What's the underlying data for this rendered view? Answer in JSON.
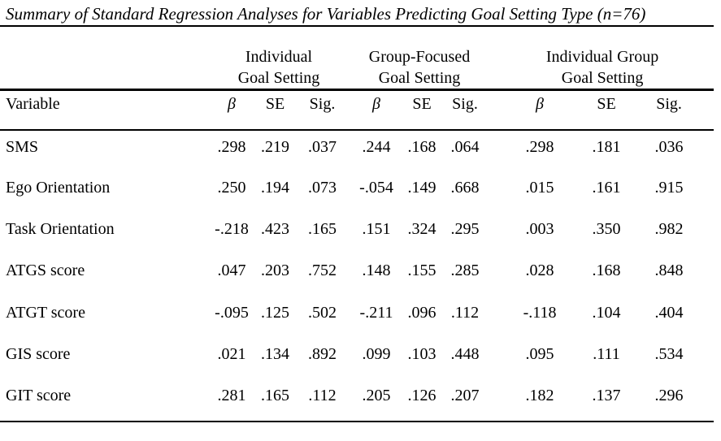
{
  "title": "Summary of Standard Regression Analyses for Variables Predicting Goal Setting Type (n=76)",
  "table": {
    "variable_header": "Variable",
    "groups": [
      {
        "line1": "Individual",
        "line2": "Goal Setting"
      },
      {
        "line1": "Group-Focused",
        "line2": "Goal Setting"
      },
      {
        "line1": "Individual Group",
        "line2": "Goal Setting"
      }
    ],
    "stat_headers": [
      "β",
      "SE",
      "Sig."
    ],
    "rows": [
      {
        "variable": "SMS",
        "values": [
          ".298",
          ".219",
          ".037",
          ".244",
          ".168",
          ".064",
          ".298",
          ".181",
          ".036"
        ]
      },
      {
        "variable": "Ego Orientation",
        "values": [
          ".250",
          ".194",
          ".073",
          "-.054",
          ".149",
          ".668",
          ".015",
          ".161",
          ".915"
        ]
      },
      {
        "variable": "Task Orientation",
        "values": [
          "-.218",
          ".423",
          ".165",
          ".151",
          ".324",
          ".295",
          ".003",
          ".350",
          ".982"
        ]
      },
      {
        "variable": "ATGS score",
        "values": [
          ".047",
          ".203",
          ".752",
          ".148",
          ".155",
          ".285",
          ".028",
          ".168",
          ".848"
        ]
      },
      {
        "variable": "ATGT score",
        "values": [
          "-.095",
          ".125",
          ".502",
          "-.211",
          ".096",
          ".112",
          "-.118",
          ".104",
          ".404"
        ]
      },
      {
        "variable": "GIS score",
        "values": [
          ".021",
          ".134",
          ".892",
          ".099",
          ".103",
          ".448",
          ".095",
          ".111",
          ".534"
        ]
      },
      {
        "variable": "GIT score",
        "values": [
          ".281",
          ".165",
          ".112",
          ".205",
          ".126",
          ".207",
          ".182",
          ".137",
          ".296"
        ]
      }
    ]
  },
  "chart_data": {
    "type": "table",
    "title": "Summary of Standard Regression Analyses for Variables Predicting Goal Setting Type (n=76)",
    "n": 76,
    "column_groups": [
      "Individual Goal Setting",
      "Group-Focused Goal Setting",
      "Individual Group Goal Setting"
    ],
    "columns_per_group": [
      "β",
      "SE",
      "Sig."
    ],
    "variables": [
      "SMS",
      "Ego Orientation",
      "Task Orientation",
      "ATGS score",
      "ATGT score",
      "GIS score",
      "GIT score"
    ],
    "series": [
      {
        "name": "Individual Goal Setting",
        "beta": [
          0.298,
          0.25,
          -0.218,
          0.047,
          -0.095,
          0.021,
          0.281
        ],
        "se": [
          0.219,
          0.194,
          0.423,
          0.203,
          0.125,
          0.134,
          0.165
        ],
        "sig": [
          0.037,
          0.073,
          0.165,
          0.752,
          0.502,
          0.892,
          0.112
        ]
      },
      {
        "name": "Group-Focused Goal Setting",
        "beta": [
          0.244,
          -0.054,
          0.151,
          0.148,
          -0.211,
          0.099,
          0.205
        ],
        "se": [
          0.168,
          0.149,
          0.324,
          0.155,
          0.096,
          0.103,
          0.126
        ],
        "sig": [
          0.064,
          0.668,
          0.295,
          0.285,
          0.112,
          0.448,
          0.207
        ]
      },
      {
        "name": "Individual Group Goal Setting",
        "beta": [
          0.298,
          0.015,
          0.003,
          0.028,
          -0.118,
          0.095,
          0.182
        ],
        "se": [
          0.181,
          0.161,
          0.35,
          0.168,
          0.104,
          0.111,
          0.137
        ],
        "sig": [
          0.036,
          0.915,
          0.982,
          0.848,
          0.404,
          0.534,
          0.296
        ]
      }
    ]
  },
  "colors": {
    "text": "#000000",
    "background": "#ffffff",
    "rule": "#000000"
  }
}
